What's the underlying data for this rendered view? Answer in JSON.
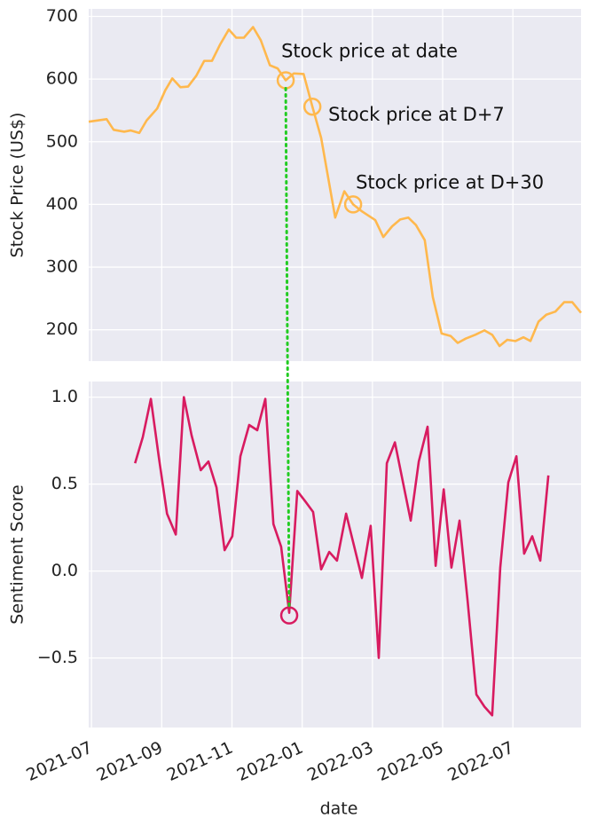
{
  "chart_data": {
    "type": "line",
    "xlabel": "date",
    "xlim": [
      -0.08,
      13.94
    ],
    "xticks": [
      {
        "value": 0,
        "label": "2021-07"
      },
      {
        "value": 2,
        "label": "2021-09"
      },
      {
        "value": 4,
        "label": "2021-11"
      },
      {
        "value": 6,
        "label": "2022-01"
      },
      {
        "value": 8,
        "label": "2022-03"
      },
      {
        "value": 10,
        "label": "2022-05"
      },
      {
        "value": 12,
        "label": "2022-07"
      }
    ],
    "grid": true,
    "panels": [
      {
        "ylabel": "Stock Price (US$)",
        "ylim": [
          150,
          712
        ],
        "yticks": [
          200,
          300,
          400,
          500,
          600,
          700
        ],
        "x": [
          -0.08,
          0.43,
          0.63,
          0.93,
          1.11,
          1.36,
          1.57,
          1.87,
          2.1,
          2.3,
          2.53,
          2.75,
          2.98,
          3.21,
          3.43,
          3.66,
          3.91,
          4.12,
          4.34,
          4.6,
          4.82,
          5.08,
          5.3,
          5.53,
          5.76,
          6.04,
          6.29,
          6.54,
          6.94,
          7.2,
          7.45,
          7.7,
          8.08,
          8.31,
          8.56,
          8.79,
          9.02,
          9.24,
          9.49,
          9.72,
          9.97,
          10.23,
          10.43,
          10.66,
          10.93,
          11.19,
          11.41,
          11.62,
          11.84,
          12.07,
          12.3,
          12.5,
          12.73,
          12.95,
          13.21,
          13.46,
          13.69,
          13.94
        ],
        "series": [
          {
            "color": "#ffb84d",
            "values": [
              532,
              536,
              519,
              516,
              518,
              514,
              534,
              553,
              582,
              601,
              587,
              588,
              605,
              629,
              629,
              655,
              679,
              666,
              666,
              683,
              662,
              622,
              617,
              598,
              609,
              608,
              556,
              506,
              379,
              421,
              400,
              389,
              375,
              348,
              365,
              376,
              379,
              367,
              343,
              252,
              194,
              190,
              179,
              186,
              192,
              199,
              192,
              174,
              184,
              182,
              188,
              182,
              213,
              224,
              229,
              244,
              244,
              227
            ]
          }
        ],
        "highlights": [
          {
            "x": 5.53,
            "y": 598,
            "label": "Stock price at date"
          },
          {
            "x": 6.29,
            "y": 556,
            "label": "Stock price at D+7"
          },
          {
            "x": 7.45,
            "y": 400,
            "label": "Stock price at D+30"
          }
        ],
        "highlight_color": "#ffb84d"
      },
      {
        "ylabel": "Sentiment Score",
        "ylim": [
          -0.9,
          1.09
        ],
        "yticks": [
          {
            "value": -0.5,
            "label": "−0.5"
          },
          {
            "value": 0,
            "label": "0.0"
          },
          0.5,
          {
            "value": 1,
            "label": "1.0"
          }
        ],
        "x": [
          1.24,
          1.46,
          1.69,
          1.92,
          2.15,
          2.4,
          2.63,
          2.85,
          3.11,
          3.33,
          3.56,
          3.79,
          4.01,
          4.24,
          4.49,
          4.72,
          4.95,
          5.18,
          5.4,
          5.63,
          5.86,
          6.09,
          6.31,
          6.54,
          6.77,
          6.99,
          7.25,
          7.47,
          7.7,
          7.95,
          8.18,
          8.41,
          8.64,
          8.86,
          9.09,
          9.32,
          9.57,
          9.8,
          10.03,
          10.25,
          10.48,
          10.71,
          10.96,
          11.19,
          11.41,
          11.64,
          11.87,
          12.1,
          12.32,
          12.55,
          12.78,
          13.01
        ],
        "series": [
          {
            "color": "#d81b60",
            "values": [
              0.62,
              0.77,
              0.99,
              0.65,
              0.33,
              0.21,
              1.0,
              0.78,
              0.58,
              0.63,
              0.48,
              0.12,
              0.2,
              0.66,
              0.84,
              0.81,
              0.99,
              0.27,
              0.14,
              -0.24,
              0.46,
              0.4,
              0.34,
              0.01,
              0.11,
              0.06,
              0.33,
              0.15,
              -0.04,
              0.26,
              -0.5,
              0.62,
              0.74,
              0.52,
              0.29,
              0.63,
              0.83,
              0.03,
              0.47,
              0.02,
              0.29,
              -0.17,
              -0.71,
              -0.78,
              -0.83,
              0.02,
              0.51,
              0.66,
              0.1,
              0.2,
              0.06,
              0.55
            ]
          }
        ],
        "highlights": [
          {
            "x": 5.63,
            "y": -0.255
          }
        ],
        "highlight_color": "#d81b60"
      }
    ],
    "connector_color": "#22cc22"
  }
}
